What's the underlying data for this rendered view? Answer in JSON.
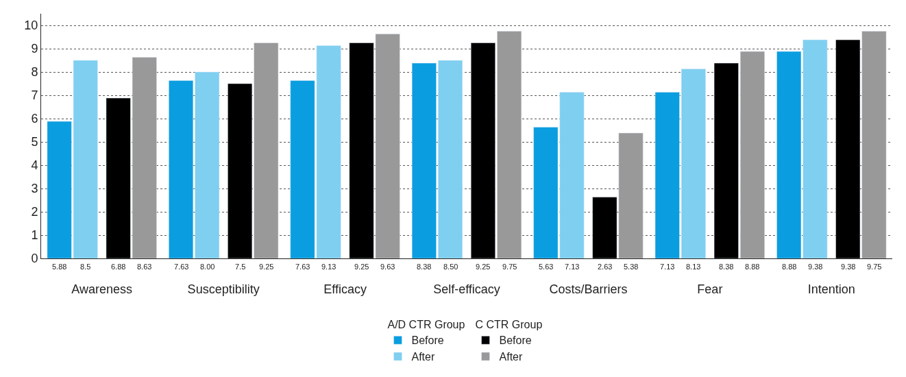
{
  "chart_data": {
    "type": "bar",
    "categories": [
      "Awareness",
      "Susceptibility",
      "Efficacy",
      "Self-efficacy",
      "Costs/Barriers",
      "Fear",
      "Intention"
    ],
    "series": [
      {
        "name": "Before",
        "color": "#0a9ee0",
        "values": [
          5.88,
          7.63,
          7.63,
          8.38,
          5.63,
          7.13,
          8.88
        ],
        "value_labels": [
          "5.88",
          "7.63",
          "7.63",
          "8.38",
          "5.63",
          "7.13",
          "8.88"
        ]
      },
      {
        "name": "After",
        "color": "#7fcff0",
        "values": [
          8.5,
          8.0,
          9.13,
          8.5,
          7.13,
          8.13,
          9.38
        ],
        "value_labels": [
          "8.5",
          "8.00",
          "9.13",
          "8.50",
          "7.13",
          "8.13",
          "9.38"
        ]
      },
      {
        "name": "Before",
        "color": "#000000",
        "values": [
          6.88,
          7.5,
          9.25,
          9.25,
          2.63,
          8.38,
          9.38
        ],
        "value_labels": [
          "6.88",
          "7.5",
          "9.25",
          "9.25",
          "2.63",
          "8.38",
          "9.38"
        ]
      },
      {
        "name": "After",
        "color": "#999999",
        "values": [
          8.63,
          9.25,
          9.63,
          9.75,
          5.38,
          8.88,
          9.75
        ],
        "value_labels": [
          "8.63",
          "9.25",
          "9.63",
          "9.75",
          "5.38",
          "8.88",
          "9.75"
        ]
      }
    ],
    "annotations": [
      "A/D CTR Group",
      "C CTR Group"
    ],
    "ylim": [
      0,
      10.5
    ],
    "yticks": [
      0,
      1,
      2,
      3,
      4,
      5,
      6,
      7,
      8,
      9,
      10
    ],
    "grid": "y",
    "legend": "bottom"
  }
}
